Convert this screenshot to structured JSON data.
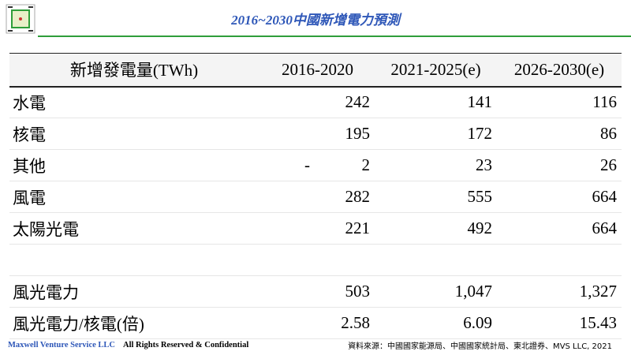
{
  "header": {
    "title": "2016~2030中國新增電力預測"
  },
  "table": {
    "columns": [
      "新增發電量(TWh)",
      "2016-2020",
      "2021-2025(e)",
      "2026-2030(e)"
    ],
    "rows": [
      [
        "水電",
        "242",
        "141",
        "116"
      ],
      [
        "核電",
        "195",
        "172",
        "86"
      ],
      [
        "其他",
        [
          "-",
          "2"
        ],
        "23",
        "26"
      ],
      [
        "風電",
        "282",
        "555",
        "664"
      ],
      [
        "太陽光電",
        "221",
        "492",
        "664"
      ],
      null,
      [
        "風光電力",
        "503",
        "1,047",
        "1,327"
      ],
      [
        "風光電力/核電(倍)",
        "2.58",
        "6.09",
        "15.43"
      ]
    ]
  },
  "footer": {
    "company": "Maxwell Venture Service LLC",
    "rights": "All Rights Reserved & Confidential",
    "source": "資料來源：中國國家能源局、中國國家統計局、東北證券、MVS LLC, 2021"
  }
}
